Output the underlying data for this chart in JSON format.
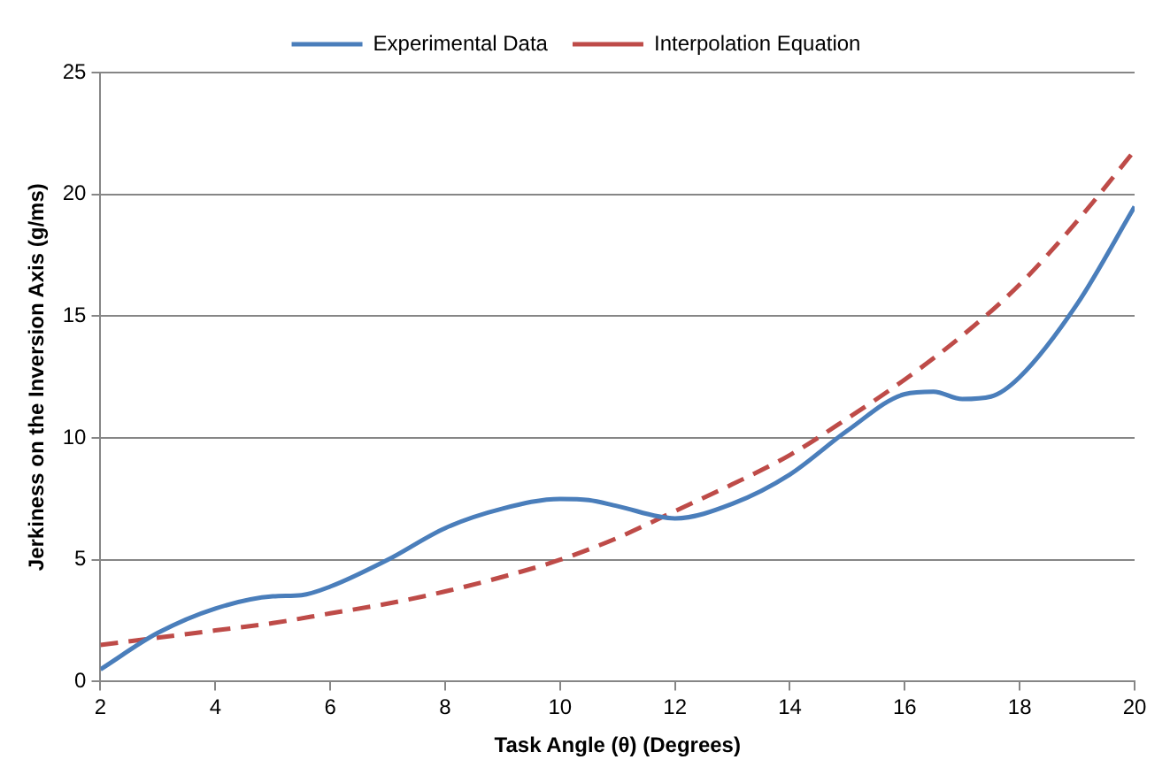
{
  "chart_data": {
    "type": "line",
    "xlabel": "Task Angle (θ) (Degrees)",
    "ylabel": "Jerkiness on the Inversion Axis (g/ms)",
    "xlim": [
      2,
      20
    ],
    "xticks": [
      2,
      4,
      6,
      8,
      10,
      12,
      14,
      16,
      18,
      20
    ],
    "ylim": [
      0,
      25
    ],
    "yticks": [
      0,
      5,
      10,
      15,
      20,
      25
    ],
    "grid": "y",
    "legend": "top",
    "marker": "none",
    "series": [
      {
        "name": "Experimental Data",
        "color": "#4a7ebb",
        "line_style": "solid",
        "x": [
          2,
          3,
          4,
          5,
          5.5,
          6,
          7,
          8,
          9,
          10,
          10.5,
          11,
          12,
          13,
          14,
          15,
          16,
          16.5,
          17,
          17.5,
          18,
          19,
          20
        ],
        "values": [
          0.5,
          2,
          3,
          3.5,
          3.55,
          3.9,
          5,
          6.3,
          7.1,
          7.5,
          7.45,
          7.2,
          6.7,
          7.3,
          8.5,
          10.3,
          11.8,
          11.9,
          11.6,
          11.7,
          12.5,
          15.5,
          19.5
        ]
      },
      {
        "name": "Interpolation Equation",
        "color": "#be4b48",
        "line_style": "dashed",
        "x": [
          2,
          3,
          4,
          5,
          6,
          7,
          8,
          9,
          10,
          11,
          12,
          13,
          14,
          15,
          16,
          17,
          18,
          19,
          20
        ],
        "values": [
          1.5,
          1.8,
          2.1,
          2.4,
          2.8,
          3.2,
          3.7,
          4.3,
          5,
          5.9,
          7,
          8.1,
          9.3,
          10.8,
          12.4,
          14.2,
          16.3,
          18.9,
          21.8
        ]
      }
    ]
  }
}
